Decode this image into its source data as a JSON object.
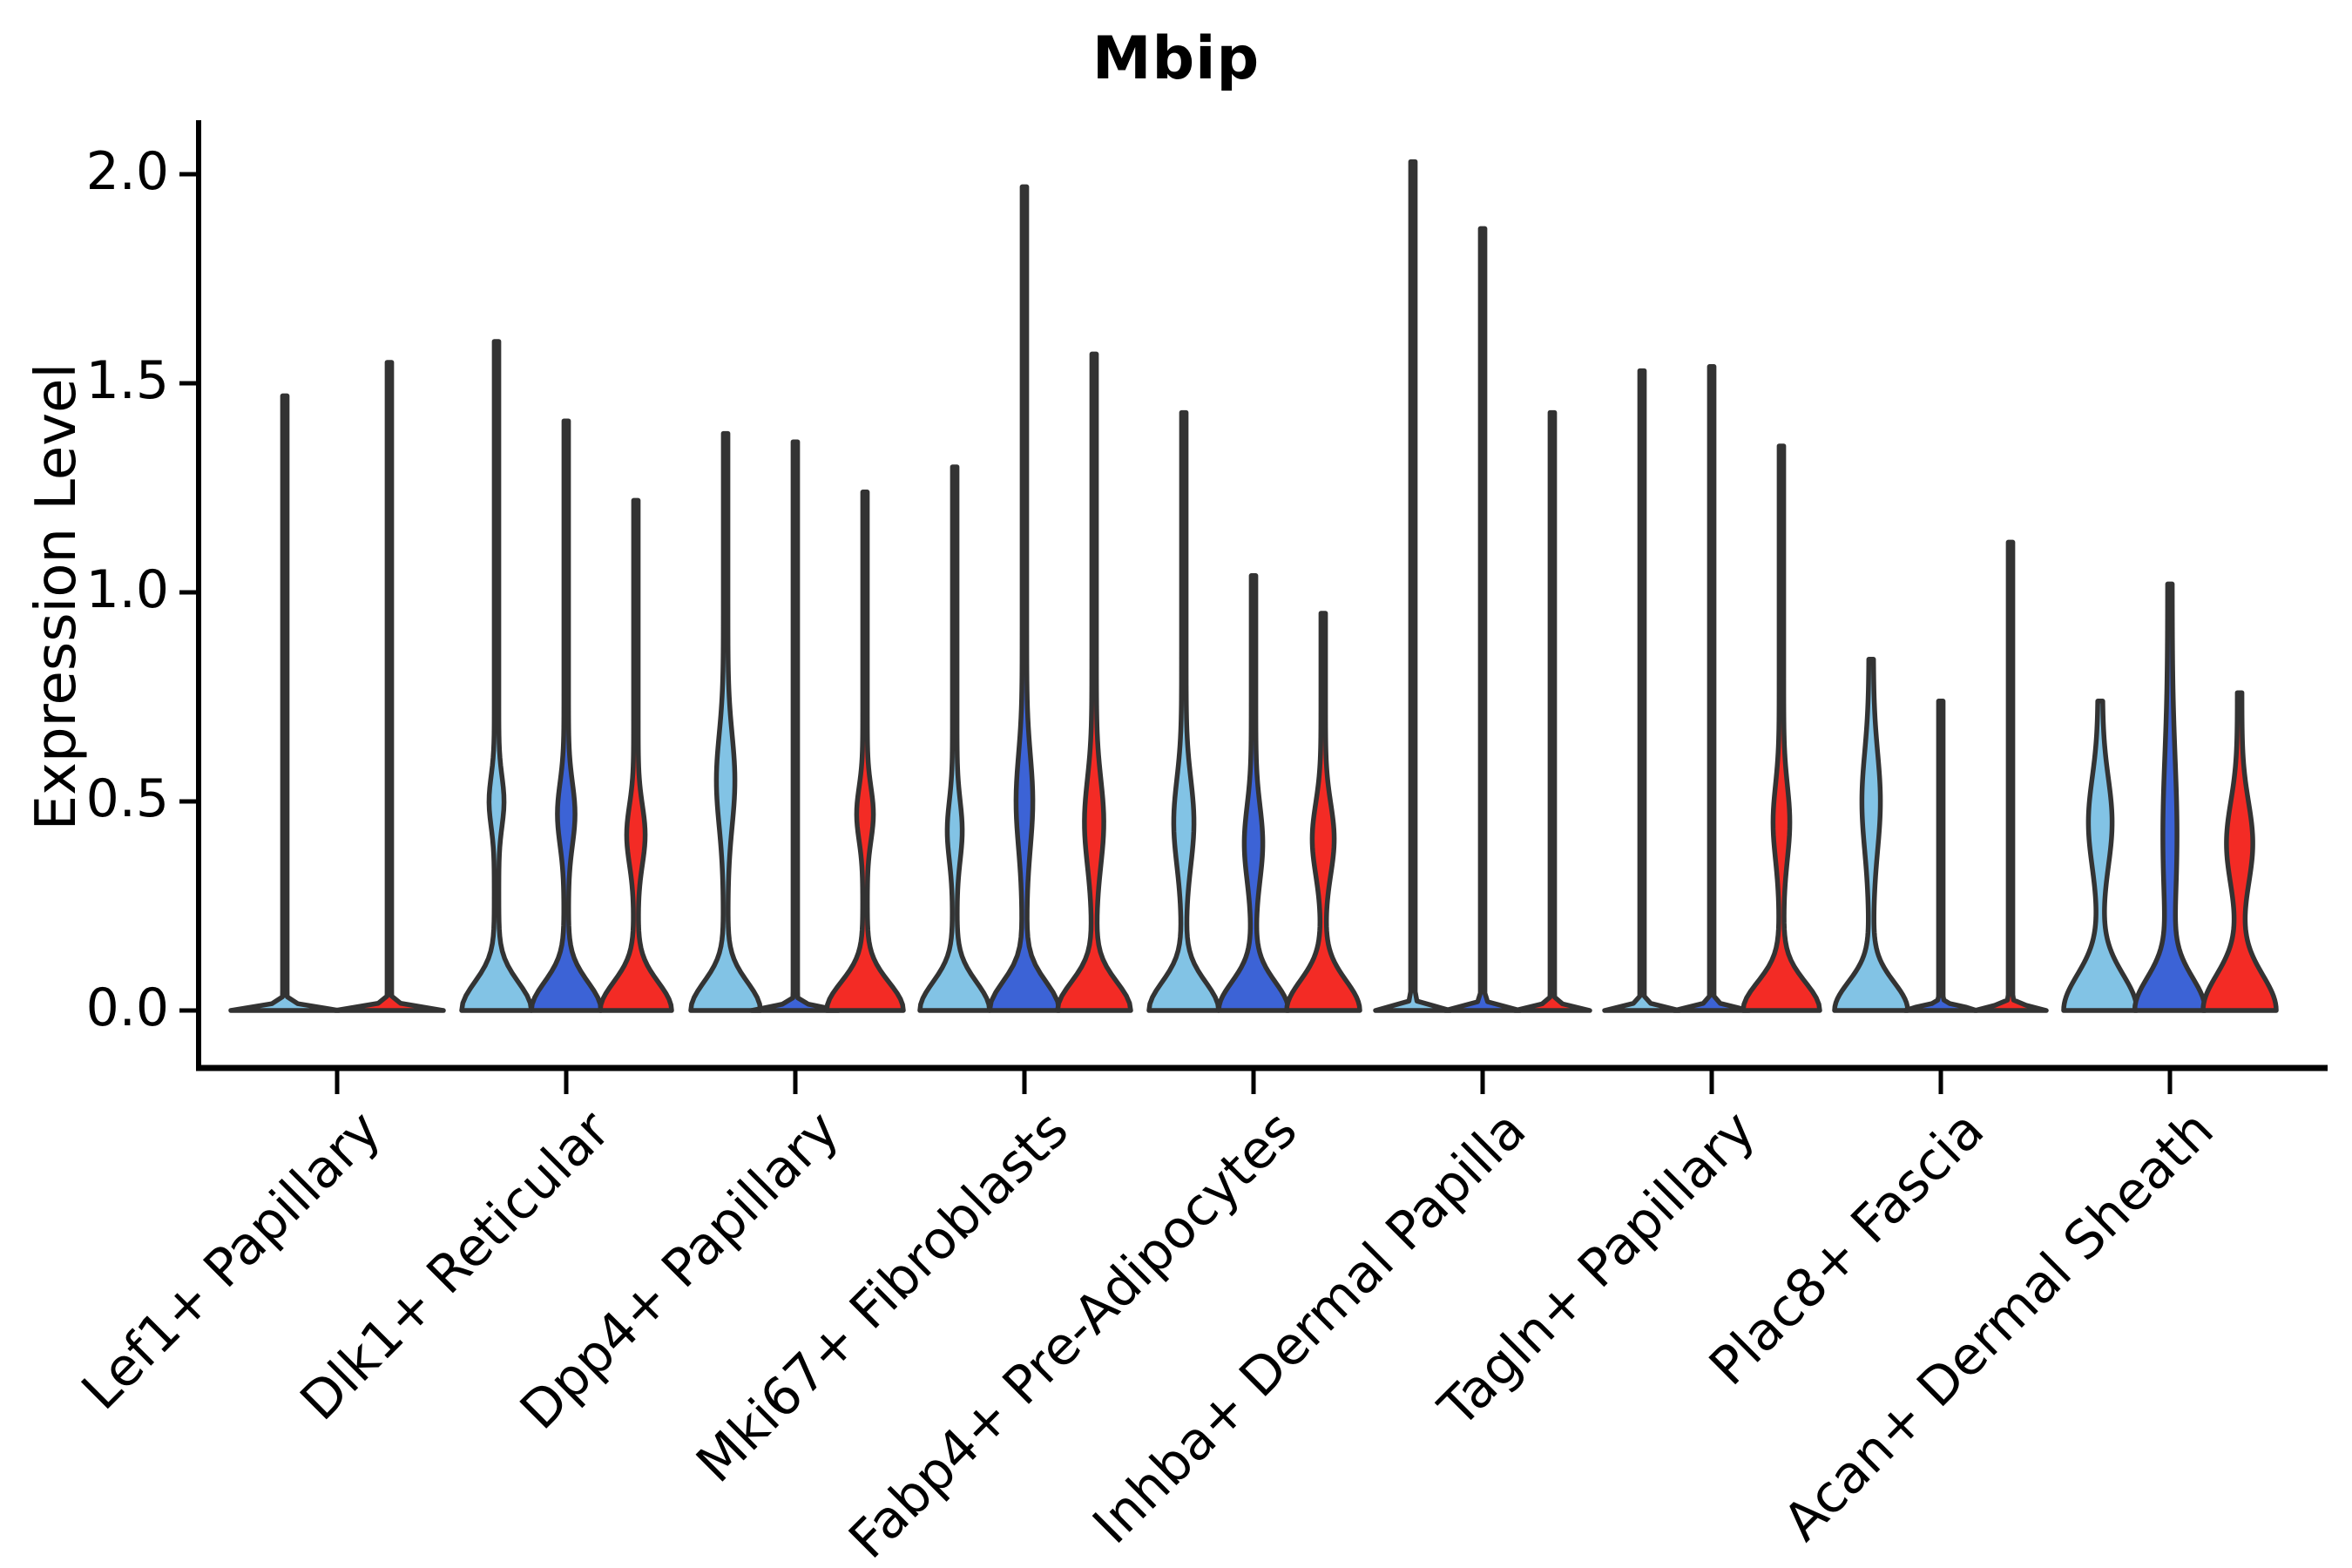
{
  "title": "Mbip",
  "chart_data": {
    "type": "violin",
    "title": "Mbip",
    "xlabel": "",
    "ylabel": "Expression Level",
    "ylim": [
      0,
      2.12
    ],
    "yticks": [
      0,
      0.5,
      1.0,
      1.5,
      2.0
    ],
    "ytick_labels": [
      "0.0",
      "0.5",
      "1.0",
      "1.5",
      "2.0"
    ],
    "grid": false,
    "legend_position": "none",
    "categories": [
      "Lef1+ Papillary",
      "Dlk1+ Reticular",
      "Dpp4+ Papillary",
      "Mki67+ Fibroblasts",
      "Fabp4+ Pre-Adipocytes",
      "Inhba+ Dermal Papilla",
      "Tagln+ Papillary",
      "Plac8+ Fascia",
      "Acan+ Dermal Sheath"
    ],
    "palette": {
      "light_blue": "#82C3E5",
      "dark_blue": "#3C63D6",
      "red": "#F32B25",
      "outline": "#333333",
      "axis": "#000000"
    },
    "groups": [
      {
        "category": "Lef1+ Papillary",
        "violins": [
          {
            "split": "light_blue",
            "offset": -60,
            "max": 1.47,
            "shape": "spike",
            "flat_halfwidth": 62,
            "bulge": null
          },
          {
            "split": "red",
            "offset": 60,
            "max": 1.55,
            "shape": "spike",
            "flat_halfwidth": 62,
            "bulge": null
          }
        ]
      },
      {
        "category": "Dlk1+ Reticular",
        "violins": [
          {
            "split": "light_blue",
            "offset": -80,
            "max": 1.6,
            "shape": "violin",
            "base_halfwidth": 40,
            "base_sigma": 0.095,
            "bulge": {
              "center": 0.5,
              "spread": 0.085,
              "width": 6.0
            }
          },
          {
            "split": "dark_blue",
            "offset": 0,
            "max": 1.41,
            "shape": "violin",
            "base_halfwidth": 40,
            "base_sigma": 0.095,
            "bulge": {
              "center": 0.47,
              "spread": 0.105,
              "width": 7.5
            }
          },
          {
            "split": "red",
            "offset": 80,
            "max": 1.22,
            "shape": "violin",
            "base_halfwidth": 41,
            "base_sigma": 0.095,
            "bulge": {
              "center": 0.42,
              "spread": 0.1,
              "width": 8.0
            }
          }
        ]
      },
      {
        "category": "Dpp4+ Papillary",
        "violins": [
          {
            "split": "light_blue",
            "offset": -80,
            "max": 1.38,
            "shape": "violin",
            "base_halfwidth": 40,
            "base_sigma": 0.095,
            "bulge": {
              "center": 0.55,
              "spread": 0.155,
              "width": 8.0
            }
          },
          {
            "split": "dark_blue",
            "offset": 0,
            "max": 1.36,
            "shape": "spike",
            "flat_halfwidth": 50,
            "bulge": null
          },
          {
            "split": "red",
            "offset": 80,
            "max": 1.24,
            "shape": "violin",
            "base_halfwidth": 44,
            "base_sigma": 0.095,
            "bulge": {
              "center": 0.47,
              "spread": 0.09,
              "width": 7.0
            }
          }
        ]
      },
      {
        "category": "Mki67+ Fibroblasts",
        "violins": [
          {
            "split": "light_blue",
            "offset": -80,
            "max": 1.3,
            "shape": "violin",
            "base_halfwidth": 40,
            "base_sigma": 0.095,
            "bulge": {
              "center": 0.43,
              "spread": 0.1,
              "width": 6.0
            }
          },
          {
            "split": "dark_blue",
            "offset": 0,
            "max": 1.97,
            "shape": "violin",
            "base_halfwidth": 40,
            "base_sigma": 0.095,
            "bulge": {
              "center": 0.5,
              "spread": 0.155,
              "width": 7.0
            }
          },
          {
            "split": "red",
            "offset": 80,
            "max": 1.57,
            "shape": "violin",
            "base_halfwidth": 42,
            "base_sigma": 0.095,
            "bulge": {
              "center": 0.45,
              "spread": 0.145,
              "width": 8.5
            }
          }
        ]
      },
      {
        "category": "Fabp4+ Pre-Adipocytes",
        "violins": [
          {
            "split": "light_blue",
            "offset": -80,
            "max": 1.43,
            "shape": "violin",
            "base_halfwidth": 40,
            "base_sigma": 0.095,
            "bulge": {
              "center": 0.45,
              "spread": 0.145,
              "width": 9.0
            }
          },
          {
            "split": "dark_blue",
            "offset": 0,
            "max": 1.04,
            "shape": "violin",
            "base_halfwidth": 40,
            "base_sigma": 0.095,
            "bulge": {
              "center": 0.4,
              "spread": 0.125,
              "width": 8.0
            }
          },
          {
            "split": "red",
            "offset": 80,
            "max": 0.95,
            "shape": "violin",
            "base_halfwidth": 42,
            "base_sigma": 0.1,
            "bulge": {
              "center": 0.41,
              "spread": 0.12,
              "width": 10.0
            }
          }
        ]
      },
      {
        "category": "Inhba+ Dermal Papilla",
        "violins": [
          {
            "split": "light_blue",
            "offset": -80,
            "max": 2.03,
            "shape": "spike",
            "flat_halfwidth": 43,
            "bulge": null
          },
          {
            "split": "dark_blue",
            "offset": 0,
            "max": 1.87,
            "shape": "spike",
            "flat_halfwidth": 43,
            "bulge": null
          },
          {
            "split": "red",
            "offset": 80,
            "max": 1.43,
            "shape": "spike",
            "flat_halfwidth": 43,
            "bulge": null
          }
        ]
      },
      {
        "category": "Tagln+ Papillary",
        "violins": [
          {
            "split": "light_blue",
            "offset": -80,
            "max": 1.53,
            "shape": "spike",
            "flat_halfwidth": 43,
            "bulge": null
          },
          {
            "split": "dark_blue",
            "offset": 0,
            "max": 1.54,
            "shape": "spike",
            "flat_halfwidth": 43,
            "bulge": null
          },
          {
            "split": "red",
            "offset": 80,
            "max": 1.35,
            "shape": "violin",
            "base_halfwidth": 44,
            "base_sigma": 0.095,
            "bulge": {
              "center": 0.45,
              "spread": 0.125,
              "width": 7.0
            }
          }
        ]
      },
      {
        "category": "Plac8+ Fascia",
        "violins": [
          {
            "split": "light_blue",
            "offset": -80,
            "max": 0.84,
            "shape": "violin",
            "base_halfwidth": 42,
            "base_sigma": 0.095,
            "bulge": {
              "center": 0.5,
              "spread": 0.165,
              "width": 8.0
            }
          },
          {
            "split": "dark_blue",
            "offset": 0,
            "max": 0.74,
            "shape": "spike",
            "flat_halfwidth": 41,
            "bulge": null
          },
          {
            "split": "red",
            "offset": 80,
            "max": 1.12,
            "shape": "spike",
            "flat_halfwidth": 41,
            "bulge": null
          }
        ]
      },
      {
        "category": "Acan+ Dermal Sheath",
        "violins": [
          {
            "split": "light_blue",
            "offset": -80,
            "max": 0.74,
            "shape": "violin",
            "base_halfwidth": 42,
            "base_sigma": 0.12,
            "bulge": {
              "center": 0.45,
              "spread": 0.15,
              "width": 11.0
            }
          },
          {
            "split": "dark_blue",
            "offset": 0,
            "max": 1.02,
            "shape": "violin",
            "base_halfwidth": 40,
            "base_sigma": 0.11,
            "bulge": {
              "center": 0.42,
              "spread": 0.26,
              "width": 5.5
            }
          },
          {
            "split": "red",
            "offset": 80,
            "max": 0.76,
            "shape": "violin",
            "base_halfwidth": 42,
            "base_sigma": 0.12,
            "bulge": {
              "center": 0.4,
              "spread": 0.14,
              "width": 12.5
            }
          }
        ]
      }
    ]
  }
}
